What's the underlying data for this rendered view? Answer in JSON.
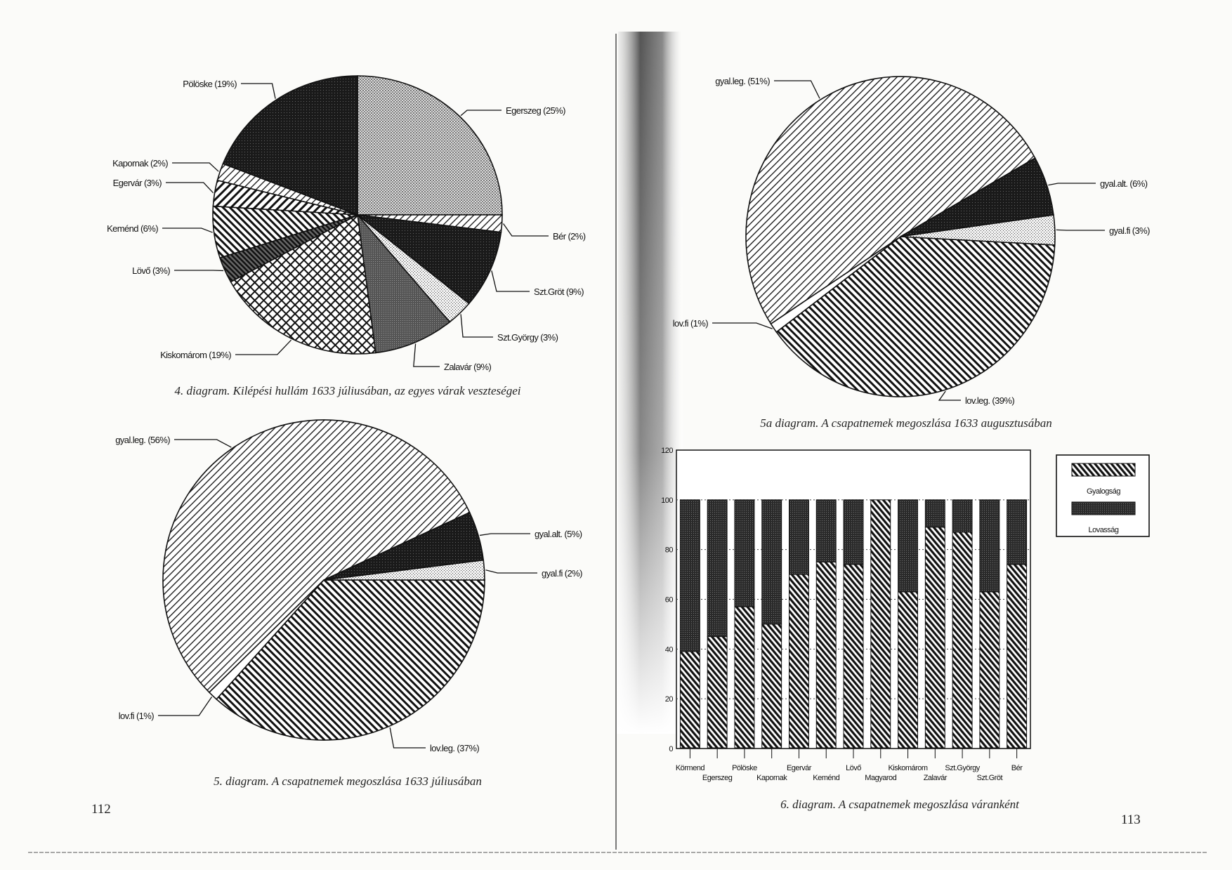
{
  "pages": {
    "left_number": "112",
    "right_number": "113"
  },
  "chart_data": [
    {
      "id": "diagram4",
      "type": "pie",
      "caption": "4. diagram. Kilépési hullám 1633 júliusában, az egyes várak veszteségei",
      "slices": [
        {
          "label": "Egerszeg (25%)",
          "name": "Egerszeg",
          "value": 25
        },
        {
          "label": "Bér (2%)",
          "name": "Bér",
          "value": 2
        },
        {
          "label": "Szt.Gröt (9%)",
          "name": "Szt.Gröt",
          "value": 9
        },
        {
          "label": "Szt.György (3%)",
          "name": "Szt.György",
          "value": 3
        },
        {
          "label": "Zalavár (9%)",
          "name": "Zalavár",
          "value": 9
        },
        {
          "label": "Kiskomárom (19%)",
          "name": "Kiskomárom",
          "value": 19
        },
        {
          "label": "Lövő (3%)",
          "name": "Lövő",
          "value": 3
        },
        {
          "label": "Keménd (6%)",
          "name": "Keménd",
          "value": 6
        },
        {
          "label": "Egervár (3%)",
          "name": "Egervár",
          "value": 3
        },
        {
          "label": "Kapornak (2%)",
          "name": "Kapornak",
          "value": 2
        },
        {
          "label": "Pölöske (19%)",
          "name": "Pölöske",
          "value": 19
        }
      ]
    },
    {
      "id": "diagram5",
      "type": "pie",
      "caption": "5. diagram. A csapatnemek megoszlása 1633 júliusában",
      "slices": [
        {
          "label": "lov.leg. (37%)",
          "value": 37
        },
        {
          "label": "lov.fi (1%)",
          "value": 1
        },
        {
          "label": "gyal.leg. (56%)",
          "value": 56
        },
        {
          "label": "gyal.alt. (5%)",
          "value": 5
        },
        {
          "label": "gyal.fi (2%)",
          "value": 2
        }
      ]
    },
    {
      "id": "diagram5a",
      "type": "pie",
      "caption": "5a diagram. A csapatnemek megoszlása 1633 augusztusában",
      "slices": [
        {
          "label": "lov.leg. (39%)",
          "value": 39
        },
        {
          "label": "lov.fi (1%)",
          "value": 1
        },
        {
          "label": "gyal.leg. (51%)",
          "value": 51
        },
        {
          "label": "gyal.alt. (6%)",
          "value": 6
        },
        {
          "label": "gyal.fi (3%)",
          "value": 3
        }
      ]
    },
    {
      "id": "diagram6",
      "type": "bar",
      "stacked": true,
      "caption": "6. diagram. A csapatnemek megoszlása váranként",
      "categories": [
        "Körmend",
        "Egerszeg",
        "Pölöske",
        "Kapornak",
        "Egervár",
        "Keménd",
        "Lövő",
        "Magyarod",
        "Kiskomárom",
        "Zalavár",
        "Szt.György",
        "Szt.Gröt",
        "Bér"
      ],
      "series": [
        {
          "name": "Gyalogság",
          "values": [
            39,
            45,
            57,
            50,
            70,
            75,
            74,
            100,
            63,
            89,
            87,
            63,
            74
          ]
        },
        {
          "name": "Lovasság",
          "values": [
            61,
            55,
            43,
            50,
            30,
            25,
            26,
            0,
            37,
            11,
            13,
            37,
            26
          ]
        }
      ],
      "yticks": [
        "0",
        "20",
        "40",
        "60",
        "80",
        "100",
        "120"
      ],
      "ylim": [
        0,
        120
      ],
      "grid": true,
      "legend_position": "right"
    }
  ]
}
